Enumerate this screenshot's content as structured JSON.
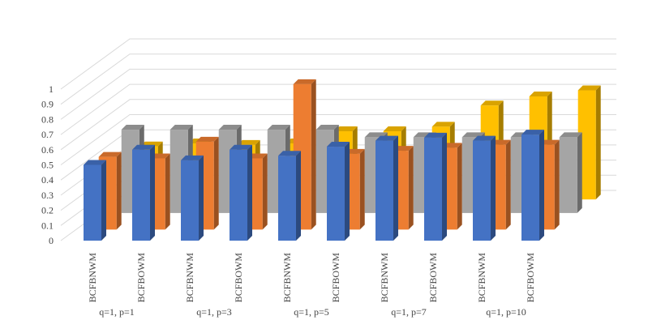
{
  "chart_data": {
    "type": "bar",
    "subtype": "3d-clustered-column",
    "title": "",
    "xlabel": "",
    "ylabel": "",
    "ylim": [
      0,
      1
    ],
    "yticks": [
      "0",
      "0.1",
      "0.2",
      "0.3",
      "0.4",
      "0.5",
      "0.6",
      "0.7",
      "0.8",
      "0.9",
      "1"
    ],
    "grid": true,
    "legend": "none",
    "groups": [
      "q=1, p=1",
      "q=1, p=3",
      "q=1, p=5",
      "q=1, p=7",
      "q=1, p=10"
    ],
    "categories": [
      "BCFBNWM",
      "BCFBOWM",
      "BCFBNWM",
      "BCFBOWM",
      "BCFBNWM",
      "BCFBOWM",
      "BCFBNWM",
      "BCFBOWM",
      "BCFBNWM",
      "BCFBOWM"
    ],
    "series": [
      {
        "color": "#4472C4",
        "values": [
          0.5,
          0.6,
          0.53,
          0.6,
          0.56,
          0.62,
          0.66,
          0.68,
          0.66,
          0.7
        ]
      },
      {
        "color": "#ED7D31",
        "values": [
          0.48,
          0.47,
          0.58,
          0.47,
          0.96,
          0.5,
          0.52,
          0.54,
          0.56,
          0.56
        ]
      },
      {
        "color": "#A5A5A5",
        "values": [
          0.55,
          0.55,
          0.55,
          0.55,
          0.55,
          0.5,
          0.5,
          0.5,
          0.5,
          0.5
        ]
      },
      {
        "color": "#FFC000",
        "values": [
          0.35,
          0.37,
          0.36,
          0.37,
          0.45,
          0.45,
          0.48,
          0.62,
          0.68,
          0.72
        ]
      }
    ]
  }
}
